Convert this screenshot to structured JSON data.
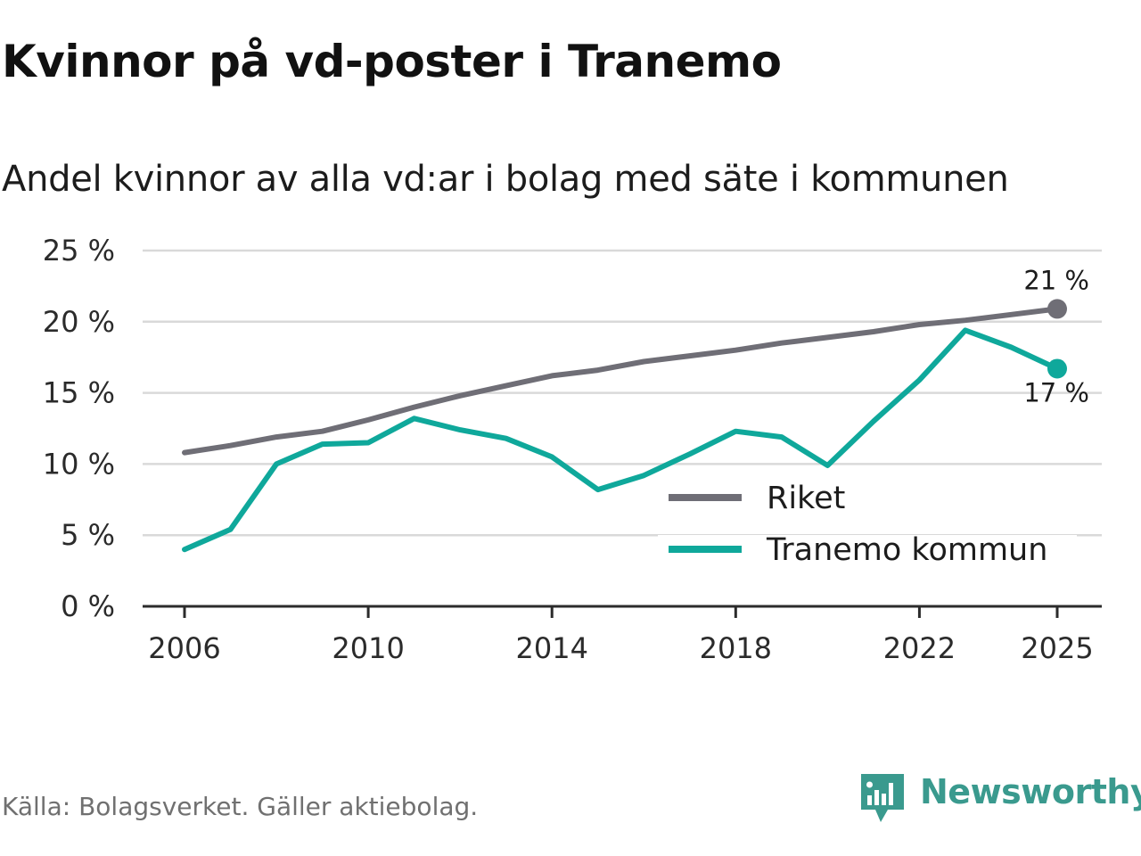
{
  "title": "Kvinnor på vd-poster i Tranemo",
  "subtitle": "Andel kvinnor av alla vd:ar i bolag med säte i kommunen",
  "source": "Källa: Bolagsverket. Gäller aktiebolag.",
  "brand": {
    "name": "Newsworthy",
    "icon": "newsworthy-logo-icon",
    "color": "#3a9a8e"
  },
  "chart_data": {
    "type": "line",
    "x": [
      2006,
      2007,
      2008,
      2009,
      2010,
      2011,
      2012,
      2013,
      2014,
      2015,
      2016,
      2017,
      2018,
      2019,
      2020,
      2021,
      2022,
      2023,
      2024,
      2025
    ],
    "series": [
      {
        "name": "Riket",
        "color": "#6f6e76",
        "values": [
          10.8,
          11.3,
          11.9,
          12.3,
          13.1,
          14.0,
          14.8,
          15.5,
          16.2,
          16.6,
          17.2,
          17.6,
          18.0,
          18.5,
          18.9,
          19.3,
          19.8,
          20.1,
          20.5,
          20.9
        ],
        "end_label": "21 %"
      },
      {
        "name": "Tranemo kommun",
        "color": "#0fa89b",
        "values": [
          4.0,
          5.4,
          10.0,
          11.4,
          11.5,
          13.2,
          12.4,
          11.8,
          10.5,
          8.2,
          9.2,
          10.7,
          12.3,
          11.9,
          9.9,
          13.0,
          15.9,
          19.4,
          18.2,
          16.7
        ],
        "end_label": "17 %"
      }
    ],
    "x_ticks": [
      2006,
      2010,
      2014,
      2018,
      2022,
      2025
    ],
    "x_tick_labels": [
      "2006",
      "2010",
      "2014",
      "2018",
      "2022",
      "2025"
    ],
    "y_ticks": [
      0,
      5,
      10,
      15,
      20,
      25
    ],
    "y_tick_labels": [
      "0 %",
      "5 %",
      "10 %",
      "15 %",
      "20 %",
      "25 %"
    ],
    "ylim": [
      0,
      25
    ],
    "xlim": [
      2006,
      2025
    ],
    "grid": true,
    "legend_position": "bottom-right",
    "xlabel": "",
    "ylabel": ""
  }
}
